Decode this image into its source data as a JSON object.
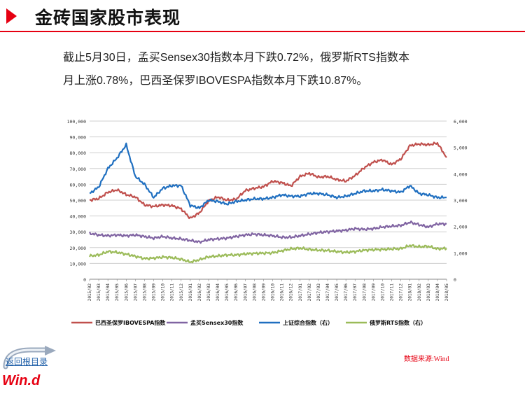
{
  "header": {
    "title": "金砖国家股市表现",
    "accent_color": "#e60012"
  },
  "summary": {
    "line1": "截止5月30日，孟买Sensex30指数本月下跌0.72%，俄罗斯RTS指数本",
    "line2": "月上涨0.78%，巴西圣保罗IBOVESPA指数本月下跌10.87%。"
  },
  "source_note": "数据来源:Wind",
  "nav": {
    "home_label": "返回根目录",
    "home_icon": "curved-arrow-icon"
  },
  "logo": {
    "text": "Win.d"
  },
  "chart_data": {
    "type": "line",
    "x": [
      "2015/02",
      "2015/03",
      "2015/04",
      "2015/05",
      "2015/06",
      "2015/07",
      "2015/08",
      "2015/09",
      "2015/10",
      "2015/11",
      "2015/12",
      "2016/01",
      "2016/02",
      "2016/03",
      "2016/04",
      "2016/05",
      "2016/06",
      "2016/07",
      "2016/08",
      "2016/09",
      "2016/10",
      "2016/11",
      "2016/12",
      "2017/01",
      "2017/02",
      "2017/03",
      "2017/04",
      "2017/05",
      "2017/06",
      "2017/07",
      "2017/08",
      "2017/09",
      "2017/10",
      "2017/11",
      "2017/12",
      "2018/01",
      "2018/02",
      "2018/03",
      "2018/04",
      "2018/05"
    ],
    "left_axis": {
      "ylim": [
        0,
        100000
      ],
      "ticks": [
        "0",
        "10,000",
        "20,000",
        "30,000",
        "40,000",
        "50,000",
        "60,000",
        "70,000",
        "80,000",
        "90,000",
        "100,000"
      ]
    },
    "right_axis": {
      "ylim": [
        0,
        6000
      ],
      "ticks": [
        "0",
        "1,000",
        "2,000",
        "3,000",
        "4,000",
        "5,000",
        "6,000"
      ]
    },
    "series": [
      {
        "name": "巴西圣保罗IBOVESPA指数",
        "axis": "left",
        "color": "#c0504d",
        "values": [
          50000,
          51000,
          55000,
          56500,
          53500,
          52000,
          47000,
          46000,
          47000,
          46500,
          44500,
          38500,
          42000,
          49500,
          52000,
          50000,
          50500,
          56000,
          57500,
          58500,
          62000,
          61000,
          59000,
          65000,
          67000,
          64500,
          65000,
          63000,
          62000,
          65500,
          70500,
          74000,
          75500,
          72500,
          76000,
          84500,
          85500,
          85000,
          86000,
          77000
        ]
      },
      {
        "name": "孟买Sensex30指数",
        "axis": "left",
        "color": "#8064a2",
        "values": [
          29000,
          28000,
          27500,
          28000,
          27500,
          28000,
          27000,
          26000,
          27000,
          26000,
          25500,
          24500,
          23500,
          25000,
          25500,
          26000,
          27000,
          28000,
          28500,
          28000,
          27500,
          26500,
          26500,
          27500,
          28500,
          29500,
          30000,
          30500,
          31000,
          32000,
          31500,
          32000,
          33000,
          33500,
          34000,
          36000,
          34500,
          33000,
          35000,
          35000
        ]
      },
      {
        "name": "上证综合指数（右）",
        "axis": "right",
        "color": "#1f6fc0",
        "values": [
          3250,
          3500,
          4200,
          4600,
          5100,
          3900,
          3600,
          3100,
          3450,
          3550,
          3550,
          2800,
          2700,
          3000,
          2950,
          2850,
          2950,
          3000,
          3050,
          3050,
          3100,
          3200,
          3150,
          3150,
          3250,
          3250,
          3200,
          3100,
          3150,
          3250,
          3350,
          3350,
          3400,
          3350,
          3300,
          3550,
          3250,
          3200,
          3100,
          3100
        ]
      },
      {
        "name": "俄罗斯RTS指数（右）",
        "axis": "right",
        "color": "#9bbb59",
        "values": [
          880,
          920,
          1050,
          1020,
          950,
          870,
          780,
          800,
          840,
          820,
          760,
          650,
          740,
          850,
          880,
          920,
          920,
          960,
          980,
          990,
          1000,
          1080,
          1150,
          1180,
          1130,
          1100,
          1090,
          1050,
          1020,
          1050,
          1100,
          1120,
          1130,
          1150,
          1160,
          1280,
          1230,
          1250,
          1150,
          1170
        ]
      }
    ]
  }
}
